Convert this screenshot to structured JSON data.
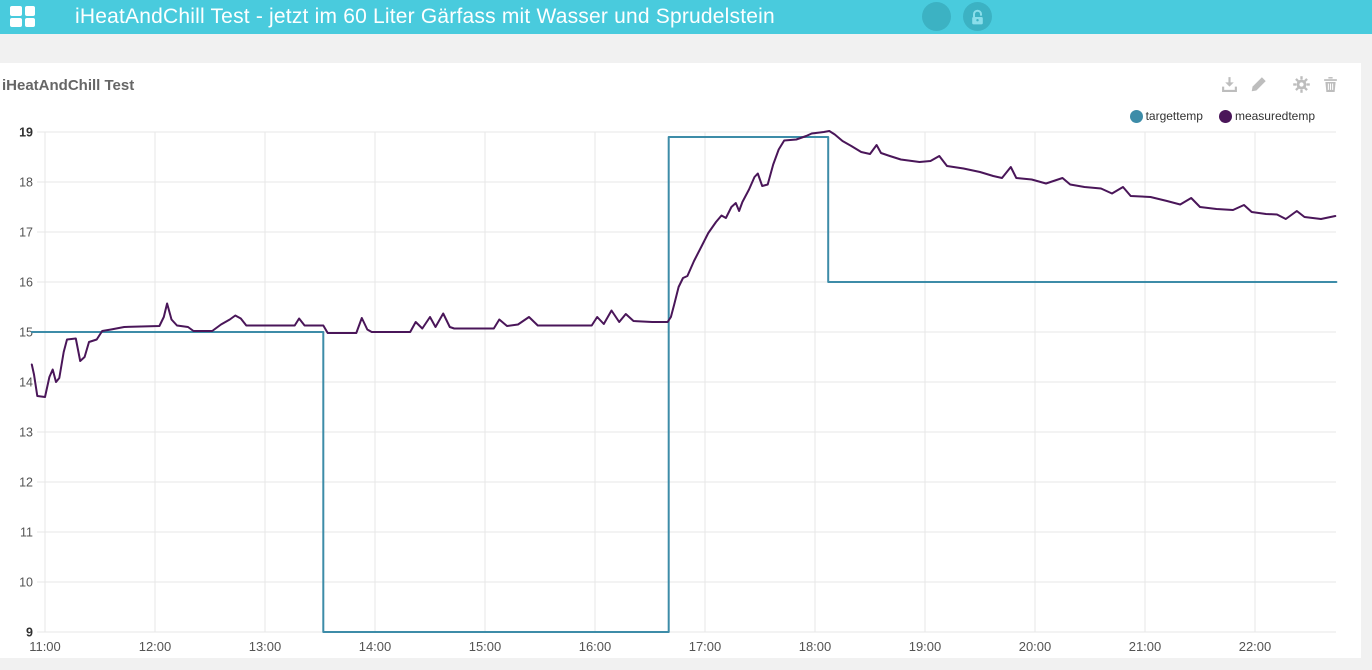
{
  "header": {
    "title": "iHeatAndChill Test - jetzt im 60 Liter Gärfass mit Wasser und Sprudelstein",
    "buttons": [
      {
        "name": "circle-button",
        "icon": "none"
      },
      {
        "name": "lock-button",
        "icon": "unlock-icon"
      }
    ]
  },
  "widget": {
    "title": "iHeatAndChill Test",
    "toolbar": [
      "download",
      "edit",
      "settings",
      "delete"
    ]
  },
  "colors": {
    "header_bg": "#49cbdd",
    "header_button_bg": "#3cb2c3",
    "page_bg": "#f1f1f1",
    "panel_bg": "#ffffff",
    "grid": "#e7e7e7",
    "axis_label": "#545454",
    "axis_label_bold": "#303030",
    "toolbar_icon": "#bdbdbd",
    "targettemp": "#3d8ca8",
    "measuredtemp": "#4a1659"
  },
  "chart_data": {
    "type": "line",
    "title": "",
    "xlabel": "",
    "ylabel": "",
    "grid": true,
    "legend_position": "top-right",
    "xlim": [
      10.88,
      22.74
    ],
    "ylim": [
      9,
      19
    ],
    "y_ticks": [
      19,
      18,
      17,
      16,
      15,
      14,
      13,
      12,
      11,
      10,
      9
    ],
    "y_bold_ticks": [
      19,
      9
    ],
    "x_ticks": [
      {
        "value": 11,
        "label": "11:00"
      },
      {
        "value": 12,
        "label": "12:00"
      },
      {
        "value": 13,
        "label": "13:00"
      },
      {
        "value": 14,
        "label": "14:00"
      },
      {
        "value": 15,
        "label": "15:00"
      },
      {
        "value": 16,
        "label": "16:00"
      },
      {
        "value": 17,
        "label": "17:00"
      },
      {
        "value": 18,
        "label": "18:00"
      },
      {
        "value": 19,
        "label": "19:00"
      },
      {
        "value": 20,
        "label": "20:00"
      },
      {
        "value": 21,
        "label": "21:00"
      },
      {
        "value": 22,
        "label": "22:00"
      }
    ],
    "series": [
      {
        "name": "targettemp",
        "color": "#3d8ca8",
        "points": [
          [
            10.88,
            15
          ],
          [
            13.53,
            15
          ],
          [
            13.53,
            9
          ],
          [
            16.67,
            9
          ],
          [
            16.67,
            18.9
          ],
          [
            18.12,
            18.9
          ],
          [
            18.12,
            16
          ],
          [
            22.74,
            16
          ]
        ]
      },
      {
        "name": "measuredtemp",
        "color": "#4a1659",
        "points": [
          [
            10.88,
            14.35
          ],
          [
            10.9,
            14.15
          ],
          [
            10.93,
            13.72
          ],
          [
            11.0,
            13.7
          ],
          [
            11.04,
            14.1
          ],
          [
            11.07,
            14.25
          ],
          [
            11.1,
            14.0
          ],
          [
            11.13,
            14.08
          ],
          [
            11.17,
            14.6
          ],
          [
            11.2,
            14.85
          ],
          [
            11.28,
            14.87
          ],
          [
            11.32,
            14.42
          ],
          [
            11.36,
            14.5
          ],
          [
            11.4,
            14.8
          ],
          [
            11.47,
            14.85
          ],
          [
            11.52,
            15.02
          ],
          [
            11.6,
            15.05
          ],
          [
            11.72,
            15.1
          ],
          [
            12.04,
            15.12
          ],
          [
            12.08,
            15.3
          ],
          [
            12.11,
            15.57
          ],
          [
            12.15,
            15.25
          ],
          [
            12.2,
            15.13
          ],
          [
            12.3,
            15.1
          ],
          [
            12.35,
            15.02
          ],
          [
            12.52,
            15.02
          ],
          [
            12.6,
            15.15
          ],
          [
            12.68,
            15.25
          ],
          [
            12.73,
            15.33
          ],
          [
            12.78,
            15.27
          ],
          [
            12.83,
            15.13
          ],
          [
            13.27,
            15.13
          ],
          [
            13.31,
            15.27
          ],
          [
            13.36,
            15.13
          ],
          [
            13.53,
            15.13
          ],
          [
            13.57,
            14.98
          ],
          [
            13.83,
            14.98
          ],
          [
            13.88,
            15.28
          ],
          [
            13.93,
            15.05
          ],
          [
            13.97,
            15.0
          ],
          [
            14.32,
            15.0
          ],
          [
            14.37,
            15.2
          ],
          [
            14.43,
            15.07
          ],
          [
            14.5,
            15.3
          ],
          [
            14.55,
            15.1
          ],
          [
            14.62,
            15.37
          ],
          [
            14.68,
            15.1
          ],
          [
            14.72,
            15.07
          ],
          [
            15.08,
            15.07
          ],
          [
            15.13,
            15.25
          ],
          [
            15.2,
            15.12
          ],
          [
            15.3,
            15.15
          ],
          [
            15.4,
            15.3
          ],
          [
            15.48,
            15.13
          ],
          [
            15.97,
            15.13
          ],
          [
            16.02,
            15.3
          ],
          [
            16.08,
            15.16
          ],
          [
            16.15,
            15.43
          ],
          [
            16.22,
            15.2
          ],
          [
            16.28,
            15.36
          ],
          [
            16.35,
            15.22
          ],
          [
            16.52,
            15.2
          ],
          [
            16.66,
            15.2
          ],
          [
            16.69,
            15.3
          ],
          [
            16.72,
            15.55
          ],
          [
            16.76,
            15.9
          ],
          [
            16.8,
            16.08
          ],
          [
            16.84,
            16.12
          ],
          [
            16.9,
            16.42
          ],
          [
            16.97,
            16.72
          ],
          [
            17.03,
            16.98
          ],
          [
            17.1,
            17.2
          ],
          [
            17.15,
            17.33
          ],
          [
            17.19,
            17.28
          ],
          [
            17.24,
            17.5
          ],
          [
            17.28,
            17.58
          ],
          [
            17.31,
            17.42
          ],
          [
            17.34,
            17.6
          ],
          [
            17.4,
            17.85
          ],
          [
            17.45,
            18.1
          ],
          [
            17.48,
            18.17
          ],
          [
            17.52,
            17.92
          ],
          [
            17.57,
            17.95
          ],
          [
            17.62,
            18.35
          ],
          [
            17.67,
            18.65
          ],
          [
            17.72,
            18.83
          ],
          [
            17.83,
            18.85
          ],
          [
            17.92,
            18.92
          ],
          [
            17.97,
            18.97
          ],
          [
            18.08,
            19.0
          ],
          [
            18.13,
            19.02
          ],
          [
            18.18,
            18.95
          ],
          [
            18.25,
            18.82
          ],
          [
            18.33,
            18.72
          ],
          [
            18.42,
            18.6
          ],
          [
            18.5,
            18.56
          ],
          [
            18.56,
            18.74
          ],
          [
            18.6,
            18.58
          ],
          [
            18.68,
            18.52
          ],
          [
            18.78,
            18.45
          ],
          [
            18.95,
            18.4
          ],
          [
            19.05,
            18.42
          ],
          [
            19.13,
            18.52
          ],
          [
            19.2,
            18.32
          ],
          [
            19.35,
            18.27
          ],
          [
            19.5,
            18.2
          ],
          [
            19.62,
            18.12
          ],
          [
            19.7,
            18.08
          ],
          [
            19.78,
            18.3
          ],
          [
            19.83,
            18.08
          ],
          [
            19.97,
            18.05
          ],
          [
            20.1,
            17.97
          ],
          [
            20.25,
            18.08
          ],
          [
            20.32,
            17.95
          ],
          [
            20.45,
            17.9
          ],
          [
            20.6,
            17.87
          ],
          [
            20.7,
            17.77
          ],
          [
            20.8,
            17.9
          ],
          [
            20.87,
            17.72
          ],
          [
            21.05,
            17.7
          ],
          [
            21.2,
            17.62
          ],
          [
            21.32,
            17.55
          ],
          [
            21.42,
            17.68
          ],
          [
            21.5,
            17.5
          ],
          [
            21.65,
            17.46
          ],
          [
            21.8,
            17.44
          ],
          [
            21.9,
            17.54
          ],
          [
            21.97,
            17.4
          ],
          [
            22.1,
            17.36
          ],
          [
            22.2,
            17.35
          ],
          [
            22.28,
            17.26
          ],
          [
            22.38,
            17.42
          ],
          [
            22.45,
            17.3
          ],
          [
            22.6,
            17.26
          ],
          [
            22.73,
            17.32
          ]
        ]
      }
    ]
  }
}
